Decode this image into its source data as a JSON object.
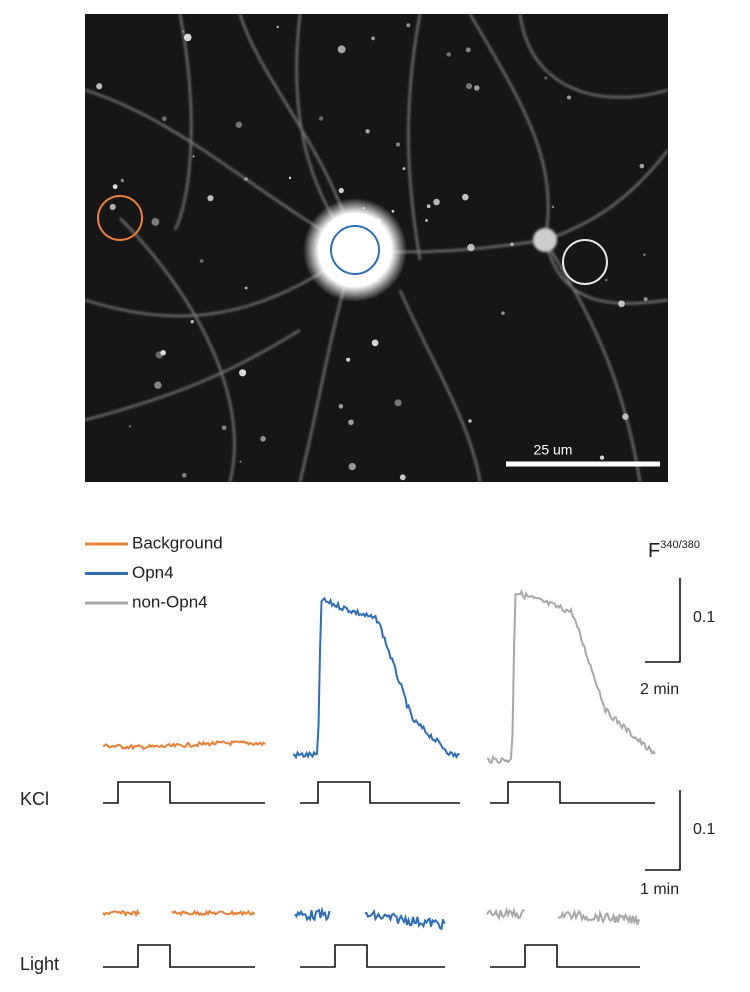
{
  "image": {
    "scale_bar_label": "25 um"
  },
  "legend": {
    "items": [
      {
        "name": "Background",
        "color": "#e8803a"
      },
      {
        "name": "Opn4",
        "color": "#2f6db5"
      },
      {
        "name": "non-Opn4",
        "color": "#a8a8a8"
      }
    ]
  },
  "ratio_label": {
    "base": "F",
    "superscript": "340/380"
  },
  "scale_bars": [
    {
      "y_label": "0.1",
      "x_label": "2 min"
    },
    {
      "y_label": "0.1",
      "x_label": "1 min"
    }
  ],
  "stimuli": {
    "kcl": "KCl",
    "light": "Light"
  }
}
